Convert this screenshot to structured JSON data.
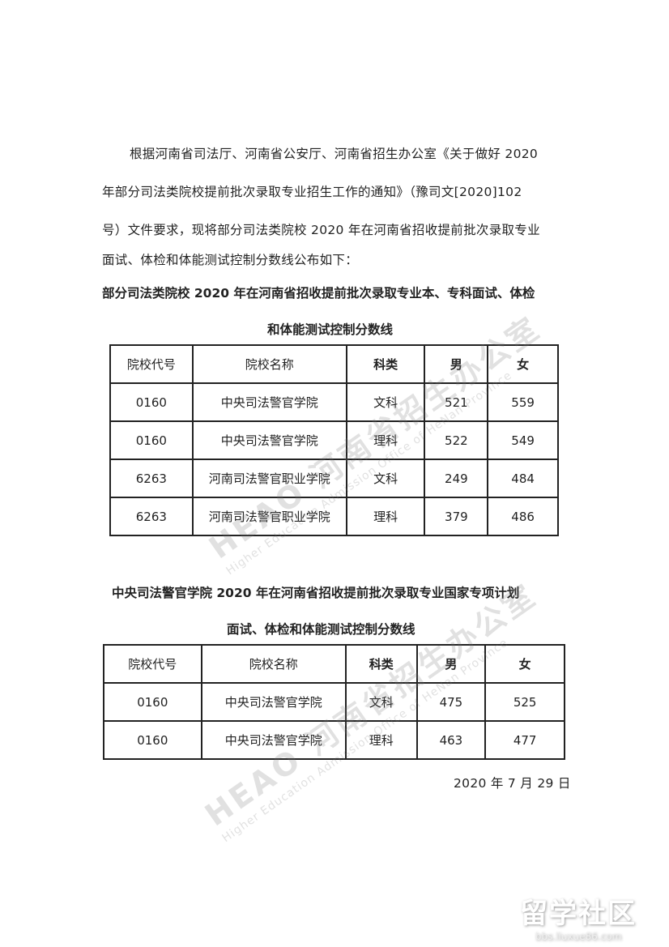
{
  "intro": [
    "根据河南省司法厅、河南省公安厅、河南省招生办公室《关于做好 2020",
    "年部分司法类院校提前批次录取专业招生工作的通知》（豫司文[2020]102",
    "号）文件要求，现将部分司法类院校 2020 年在河南省招收提前批次录取专业",
    "面试、体检和体能测试控制分数线公布如下："
  ],
  "table1": {
    "title": [
      "部分司法类院校 2020 年在河南省招收提前批次录取专业本、专科面试、体检",
      "和体能测试控制分数线"
    ],
    "headers": [
      "院校代号",
      "院校名称",
      "科类",
      "男",
      "女"
    ],
    "rows": [
      [
        "0160",
        "中央司法警官学院",
        "文科",
        "521",
        "559"
      ],
      [
        "0160",
        "中央司法警官学院",
        "理科",
        "522",
        "549"
      ],
      [
        "6263",
        "河南司法警官职业学院",
        "文科",
        "249",
        "484"
      ],
      [
        "6263",
        "河南司法警官职业学院",
        "理科",
        "379",
        "486"
      ]
    ]
  },
  "table2": {
    "title": [
      "中央司法警官学院 2020 年在河南省招收提前批次录取专业国家专项计划",
      "面试、体检和体能测试控制分数线"
    ],
    "headers": [
      "院校代号",
      "院校名称",
      "科类",
      "男",
      "女"
    ],
    "rows": [
      [
        "0160",
        "中央司法警官学院",
        "文科",
        "475",
        "525"
      ],
      [
        "0160",
        "中央司法警官学院",
        "理科",
        "463",
        "477"
      ]
    ]
  },
  "date": "2020 年 7 月 29 日",
  "watermark": {
    "cn": "HEAO 河南省招生办公室",
    "en": "Higher Education Admission Office of HeNan Province"
  },
  "site_logo": {
    "name": "留学社区",
    "url": "bbs.liuxue86.com"
  }
}
